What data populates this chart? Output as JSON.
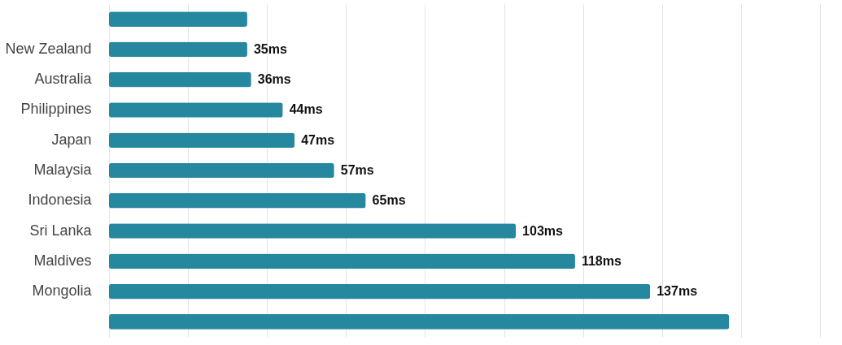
{
  "chart_data": {
    "type": "bar",
    "orientation": "horizontal",
    "categories": [
      null,
      "New Zealand",
      "Australia",
      "Philippines",
      "Japan",
      "Malaysia",
      "Indonesia",
      "Sri Lanka",
      "Maldives",
      "Mongolia",
      null
    ],
    "values": [
      35,
      35,
      36,
      44,
      47,
      57,
      65,
      103,
      118,
      137,
      157
    ],
    "value_labels": [
      null,
      "35ms",
      "36ms",
      "44ms",
      "47ms",
      "57ms",
      "65ms",
      "103ms",
      "118ms",
      "137ms",
      null
    ],
    "color": "#25889e",
    "xlim": [
      0,
      180
    ],
    "xticks": [
      {
        "value": 0,
        "label": null
      },
      {
        "value": 20,
        "label": null
      },
      {
        "value": 40,
        "label": null
      },
      {
        "value": 60,
        "label": null
      },
      {
        "value": 80,
        "label": null
      },
      {
        "value": 100,
        "label": null
      },
      {
        "value": 120,
        "label": null
      },
      {
        "value": 140,
        "label": null
      },
      {
        "value": 160,
        "label": null
      },
      {
        "value": 180,
        "label": null
      }
    ],
    "grid": "x",
    "tick_labels": "y"
  }
}
